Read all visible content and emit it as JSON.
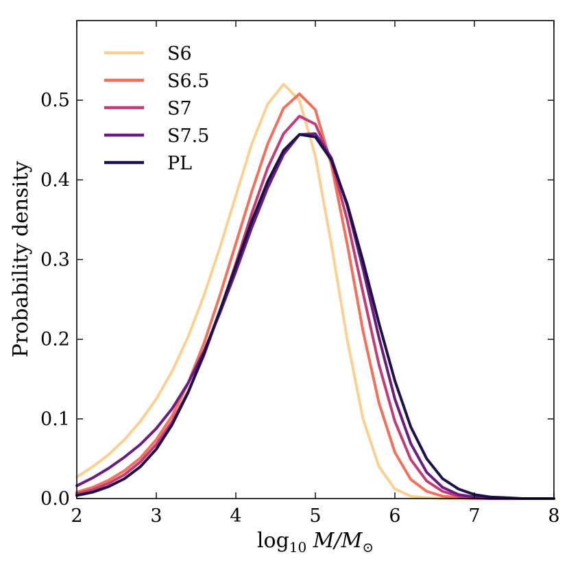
{
  "chart_data": {
    "type": "line",
    "title": "",
    "xlabel": "log10 M/M⊙",
    "xlabel_parts": {
      "base": "log",
      "sub": "10",
      "rest": " M/M",
      "sub2": "⊙"
    },
    "ylabel": "Probability density",
    "xlim": [
      2,
      8
    ],
    "ylim": [
      0.0,
      0.6
    ],
    "x_ticks": [
      2,
      3,
      4,
      5,
      6,
      7,
      8
    ],
    "x_tick_labels": [
      "2",
      "3",
      "4",
      "5",
      "6",
      "7",
      "8"
    ],
    "y_ticks": [
      0.0,
      0.1,
      0.2,
      0.3,
      0.4,
      0.5
    ],
    "y_tick_labels": [
      "0.0",
      "0.1",
      "0.2",
      "0.3",
      "0.4",
      "0.5"
    ],
    "grid": false,
    "legend_position": "top-left",
    "x": [
      2.0,
      2.2,
      2.4,
      2.6,
      2.8,
      3.0,
      3.2,
      3.4,
      3.6,
      3.8,
      4.0,
      4.2,
      4.4,
      4.6,
      4.8,
      5.0,
      5.2,
      5.4,
      5.6,
      5.8,
      6.0,
      6.2,
      6.4,
      6.6,
      6.8,
      7.0,
      7.2,
      7.4,
      7.6,
      7.8,
      8.0
    ],
    "series": [
      {
        "name": "S6",
        "color": "#fbd092",
        "values": [
          0.027,
          0.04,
          0.055,
          0.074,
          0.097,
          0.125,
          0.16,
          0.203,
          0.255,
          0.315,
          0.38,
          0.445,
          0.495,
          0.52,
          0.5,
          0.43,
          0.32,
          0.2,
          0.1,
          0.04,
          0.012,
          0.003,
          0.001,
          0.0,
          0.0,
          0.0,
          0.0,
          0.0,
          0.0,
          0.0,
          0.0
        ]
      },
      {
        "name": "S6.5",
        "color": "#f3705a",
        "values": [
          0.008,
          0.014,
          0.023,
          0.035,
          0.051,
          0.074,
          0.104,
          0.145,
          0.195,
          0.255,
          0.32,
          0.385,
          0.445,
          0.49,
          0.508,
          0.488,
          0.42,
          0.32,
          0.21,
          0.12,
          0.058,
          0.024,
          0.009,
          0.003,
          0.001,
          0.0,
          0.0,
          0.0,
          0.0,
          0.0,
          0.0
        ]
      },
      {
        "name": "S7",
        "color": "#c43c75",
        "values": [
          0.006,
          0.011,
          0.019,
          0.03,
          0.046,
          0.068,
          0.097,
          0.134,
          0.18,
          0.235,
          0.295,
          0.358,
          0.415,
          0.458,
          0.48,
          0.47,
          0.425,
          0.35,
          0.258,
          0.168,
          0.097,
          0.049,
          0.022,
          0.009,
          0.003,
          0.001,
          0.0,
          0.0,
          0.0,
          0.0,
          0.0
        ]
      },
      {
        "name": "S7.5",
        "color": "#6a1c81",
        "values": [
          0.016,
          0.026,
          0.038,
          0.052,
          0.068,
          0.088,
          0.113,
          0.145,
          0.185,
          0.233,
          0.285,
          0.34,
          0.39,
          0.432,
          0.457,
          0.458,
          0.428,
          0.368,
          0.288,
          0.202,
          0.125,
          0.069,
          0.033,
          0.014,
          0.005,
          0.002,
          0.0,
          0.0,
          0.0,
          0.0,
          0.0
        ]
      },
      {
        "name": "PL",
        "color": "#1d1147",
        "values": [
          0.004,
          0.008,
          0.015,
          0.025,
          0.04,
          0.062,
          0.093,
          0.133,
          0.182,
          0.236,
          0.292,
          0.348,
          0.398,
          0.437,
          0.457,
          0.454,
          0.425,
          0.37,
          0.298,
          0.22,
          0.148,
          0.09,
          0.05,
          0.025,
          0.012,
          0.005,
          0.002,
          0.001,
          0.0,
          0.0,
          0.0
        ]
      }
    ]
  }
}
